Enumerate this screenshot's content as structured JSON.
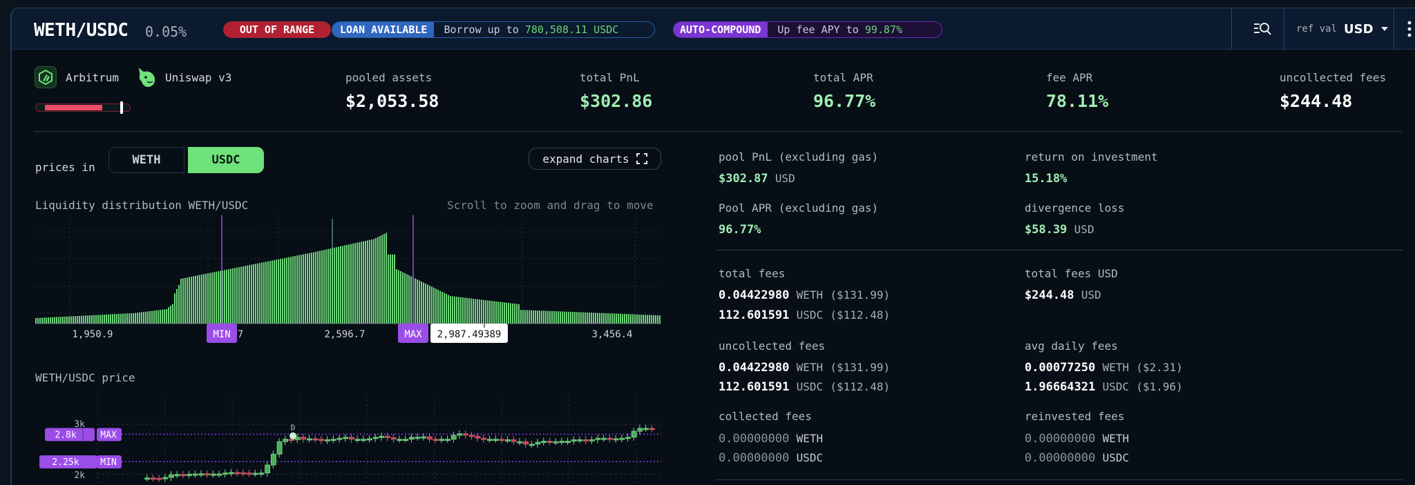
{
  "header": {
    "pair": "WETH/USDC",
    "fee_tier": "0.05%",
    "status_badge": "OUT OF RANGE",
    "loan_badge": {
      "tag": "LOAN AVAILABLE",
      "prefix": "Borrow up to ",
      "amount": "780,508.11 USDC"
    },
    "autocompound_badge": {
      "tag": "AUTO-COMPOUND",
      "prefix": "Up fee APY to ",
      "amount": "99.87%"
    },
    "ref_val_label": "ref val",
    "ref_val_currency": "USD",
    "icons": {
      "search": "search-list-icon",
      "dropdown": "caret-down-icon",
      "menu": "kebab-menu-icon"
    }
  },
  "summary": {
    "chain": "Arbitrum",
    "dex": "Uniswap v3",
    "range_indicator": {
      "fill_color": "#ea4b66",
      "position": "out-of-range"
    },
    "stats": [
      {
        "label": "pooled assets",
        "value": "$2,053.58",
        "highlight": false
      },
      {
        "label": "total PnL",
        "value": "$302.86",
        "highlight": true
      },
      {
        "label": "total APR",
        "value": "96.77%",
        "highlight": true
      },
      {
        "label": "fee APR",
        "value": "78.11%",
        "highlight": true
      },
      {
        "label": "uncollected fees",
        "value": "$244.48",
        "highlight": false
      }
    ]
  },
  "controls": {
    "prices_in_label": "prices in",
    "toggle_options": [
      "WETH",
      "USDC"
    ],
    "selected": "USDC",
    "expand_charts_label": "expand charts"
  },
  "liquidity_chart": {
    "title": "Liquidity distribution WETH/USDC",
    "hint": "Scroll to zoom and drag to move",
    "x_ticks": [
      "1,950.9",
      "2,2__.7",
      "2,596.7",
      "3,456.4"
    ],
    "x_tick_visible": [
      "1,950.9",
      "2",
      "7",
      "2,596.7",
      "3,456.4"
    ],
    "min_label": "MIN",
    "max_label": "MAX",
    "current_price": "2,987.49389"
  },
  "price_chart": {
    "title": "WETH/USDC price",
    "y_ticks": [
      "3k",
      "2k"
    ],
    "max_value": "2.8k",
    "max_label": "MAX",
    "min_value": "2.25k",
    "min_label": "MIN",
    "marker": "D"
  },
  "details": {
    "pool_pnl": {
      "label": "pool PnL (excluding gas)",
      "value": "$302.87",
      "unit": "USD"
    },
    "roi": {
      "label": "return on investment",
      "value": "15.18%"
    },
    "pool_apr": {
      "label": "Pool APR (excluding gas)",
      "value": "96.77%"
    },
    "divergence_loss": {
      "label": "divergence loss",
      "value": "$58.39",
      "unit": "USD"
    },
    "total_fees": {
      "label": "total fees",
      "rows": [
        {
          "amount": "0.04422980",
          "token": "WETH",
          "usd": "($131.99)"
        },
        {
          "amount": "112.601591",
          "token": "USDC",
          "usd": "($112.48)"
        }
      ]
    },
    "total_fees_usd": {
      "label": "total fees USD",
      "value": "$244.48",
      "unit": "USD"
    },
    "uncollected_fees": {
      "label": "uncollected fees",
      "rows": [
        {
          "amount": "0.04422980",
          "token": "WETH",
          "usd": "($131.99)"
        },
        {
          "amount": "112.601591",
          "token": "USDC",
          "usd": "($112.48)"
        }
      ]
    },
    "avg_daily_fees": {
      "label": "avg daily fees",
      "rows": [
        {
          "amount": "0.00077250",
          "token": "WETH",
          "usd": "($2.31)"
        },
        {
          "amount": "1.96664321",
          "token": "USDC",
          "usd": "($1.96)"
        }
      ]
    },
    "collected_fees": {
      "label": "collected fees",
      "rows": [
        {
          "amount": "0.00000000",
          "token": "WETH"
        },
        {
          "amount": "0.00000000",
          "token": "USDC"
        }
      ]
    },
    "reinvested_fees": {
      "label": "reinvested fees",
      "rows": [
        {
          "amount": "0.00000000",
          "token": "WETH"
        },
        {
          "amount": "0.00000000",
          "token": "USDC"
        }
      ]
    }
  },
  "colors": {
    "accent_green": "#6fe27b",
    "value_green": "#a0edb3",
    "out_of_range_red": "#b02232",
    "loan_blue": "#2f67c0",
    "autocompound_purple": "#7b35d0",
    "range_marker_purple": "#9b4de8"
  }
}
